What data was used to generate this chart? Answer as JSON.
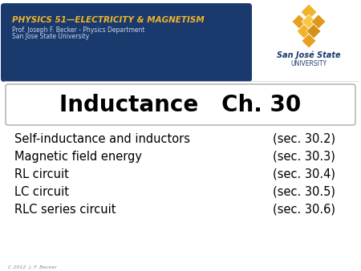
{
  "bg_color": "#ffffff",
  "header_bg_color": "#1a3a6e",
  "header_title": "PHYSICS 51—ELECTRICITY & MAGNETISM",
  "header_title_color": "#f0b429",
  "header_sub1": "Prof. Joseph F. Becker - Physics Department",
  "header_sub2": "San Jose State University",
  "header_sub_color": "#c8d4e8",
  "sjsu_name_color": "#1a3a6e",
  "title_box_text": "Inductance   Ch. 30",
  "title_box_color": "#000000",
  "title_box_bg": "#ffffff",
  "title_box_border": "#aaaaaa",
  "topics": [
    "Self-inductance and inductors",
    "Magnetic field energy",
    "RL circuit",
    "LC circuit",
    "RLC series circuit"
  ],
  "sections": [
    "(sec. 30.2)",
    "(sec. 30.3)",
    "(sec. 30.4)",
    "(sec. 30.5)",
    "(sec. 30.6)"
  ],
  "topic_color": "#000000",
  "footer_text": "C 2012  J. F. Becker",
  "footer_color": "#888888",
  "sjsu_text": "San José State",
  "univ_text": "UNIVERSITY"
}
